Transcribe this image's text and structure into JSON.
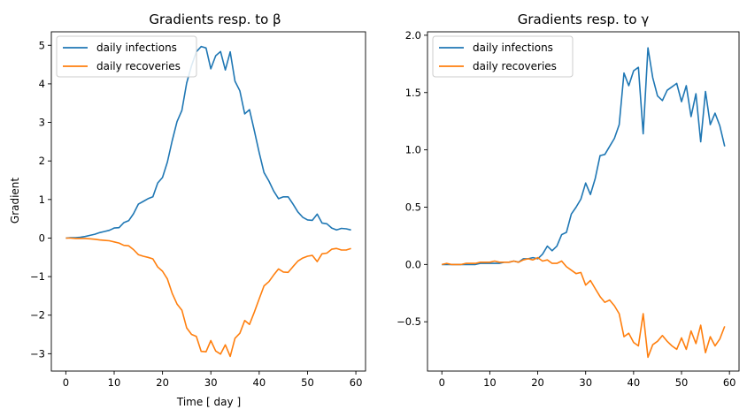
{
  "chart_data": [
    {
      "type": "line",
      "title": "Gradients resp. to β",
      "xlabel": "Time [ day ]",
      "ylabel": "Gradient",
      "xlim": [
        -3,
        62
      ],
      "ylim": [
        -3.45,
        5.35
      ],
      "xticks": [
        0,
        10,
        20,
        30,
        40,
        50,
        60
      ],
      "yticks": [
        -3,
        -2,
        -1,
        0,
        1,
        2,
        3,
        4,
        5
      ],
      "ytick_labels": [
        "−3",
        "−2",
        "−1",
        "0",
        "1",
        "2",
        "3",
        "4",
        "5"
      ],
      "grid": false,
      "legend": "upper left",
      "x": [
        0,
        1,
        2,
        3,
        4,
        5,
        6,
        7,
        8,
        9,
        10,
        11,
        12,
        13,
        14,
        15,
        16,
        17,
        18,
        19,
        20,
        21,
        22,
        23,
        24,
        25,
        26,
        27,
        28,
        29,
        30,
        31,
        32,
        33,
        34,
        35,
        36,
        37,
        38,
        39,
        40,
        41,
        42,
        43,
        44,
        45,
        46,
        47,
        48,
        49,
        50,
        51,
        52,
        53,
        54,
        55,
        56,
        57,
        58,
        59
      ],
      "series": [
        {
          "name": "daily infections",
          "color": "#1f77b4",
          "values": [
            0.0,
            0.01,
            0.01,
            0.02,
            0.04,
            0.07,
            0.1,
            0.14,
            0.17,
            0.2,
            0.26,
            0.27,
            0.4,
            0.45,
            0.63,
            0.88,
            0.95,
            1.02,
            1.07,
            1.43,
            1.57,
            1.97,
            2.52,
            3.02,
            3.31,
            4.02,
            4.47,
            4.83,
            4.97,
            4.93,
            4.39,
            4.73,
            4.84,
            4.36,
            4.83,
            4.07,
            3.82,
            3.22,
            3.33,
            2.78,
            2.22,
            1.7,
            1.48,
            1.22,
            1.02,
            1.07,
            1.07,
            0.88,
            0.68,
            0.54,
            0.47,
            0.46,
            0.62,
            0.39,
            0.37,
            0.26,
            0.21,
            0.25,
            0.24,
            0.21
          ]
        },
        {
          "name": "daily recoveries",
          "color": "#ff7f0e",
          "values": [
            0.0,
            0.0,
            -0.01,
            -0.01,
            -0.01,
            -0.02,
            -0.03,
            -0.05,
            -0.06,
            -0.07,
            -0.1,
            -0.13,
            -0.19,
            -0.2,
            -0.3,
            -0.43,
            -0.47,
            -0.5,
            -0.54,
            -0.75,
            -0.86,
            -1.06,
            -1.43,
            -1.71,
            -1.87,
            -2.33,
            -2.5,
            -2.55,
            -2.94,
            -2.95,
            -2.66,
            -2.93,
            -3.01,
            -2.77,
            -3.07,
            -2.6,
            -2.47,
            -2.14,
            -2.24,
            -1.92,
            -1.58,
            -1.24,
            -1.13,
            -0.96,
            -0.8,
            -0.88,
            -0.89,
            -0.74,
            -0.6,
            -0.52,
            -0.47,
            -0.45,
            -0.61,
            -0.41,
            -0.39,
            -0.29,
            -0.27,
            -0.31,
            -0.31,
            -0.27
          ]
        }
      ]
    },
    {
      "type": "line",
      "title": "Gradients resp. to γ",
      "xlabel": "",
      "ylabel": "",
      "xlim": [
        -3,
        62
      ],
      "ylim": [
        -0.93,
        2.03
      ],
      "xticks": [
        0,
        10,
        20,
        30,
        40,
        50,
        60
      ],
      "yticks": [
        -0.5,
        0.0,
        0.5,
        1.0,
        1.5,
        2.0
      ],
      "ytick_labels": [
        "−0.5",
        "0.0",
        "0.5",
        "1.0",
        "1.5",
        "2.0"
      ],
      "grid": false,
      "legend": "upper left",
      "x": [
        0,
        1,
        2,
        3,
        4,
        5,
        6,
        7,
        8,
        9,
        10,
        11,
        12,
        13,
        14,
        15,
        16,
        17,
        18,
        19,
        20,
        21,
        22,
        23,
        24,
        25,
        26,
        27,
        28,
        29,
        30,
        31,
        32,
        33,
        34,
        35,
        36,
        37,
        38,
        39,
        40,
        41,
        42,
        43,
        44,
        45,
        46,
        47,
        48,
        49,
        50,
        51,
        52,
        53,
        54,
        55,
        56,
        57,
        58,
        59
      ],
      "series": [
        {
          "name": "daily infections",
          "color": "#1f77b4",
          "values": [
            0.0,
            0.0,
            0.0,
            0.0,
            0.0,
            0.0,
            0.0,
            0.0,
            0.01,
            0.01,
            0.01,
            0.01,
            0.01,
            0.02,
            0.02,
            0.03,
            0.02,
            0.05,
            0.05,
            0.06,
            0.05,
            0.09,
            0.16,
            0.12,
            0.16,
            0.26,
            0.28,
            0.44,
            0.5,
            0.57,
            0.71,
            0.61,
            0.75,
            0.95,
            0.96,
            1.03,
            1.1,
            1.22,
            1.67,
            1.56,
            1.69,
            1.72,
            1.14,
            1.89,
            1.63,
            1.47,
            1.43,
            1.52,
            1.55,
            1.58,
            1.42,
            1.56,
            1.29,
            1.49,
            1.07,
            1.51,
            1.22,
            1.32,
            1.21,
            1.03
          ]
        },
        {
          "name": "daily recoveries",
          "color": "#ff7f0e",
          "values": [
            0.0,
            0.01,
            0.0,
            0.0,
            0.0,
            0.01,
            0.01,
            0.01,
            0.02,
            0.02,
            0.02,
            0.03,
            0.02,
            0.02,
            0.02,
            0.03,
            0.02,
            0.04,
            0.05,
            0.04,
            0.06,
            0.03,
            0.04,
            0.01,
            0.01,
            0.03,
            -0.02,
            -0.05,
            -0.08,
            -0.07,
            -0.18,
            -0.14,
            -0.21,
            -0.28,
            -0.33,
            -0.31,
            -0.36,
            -0.43,
            -0.63,
            -0.6,
            -0.68,
            -0.71,
            -0.43,
            -0.81,
            -0.7,
            -0.67,
            -0.62,
            -0.67,
            -0.71,
            -0.74,
            -0.64,
            -0.74,
            -0.58,
            -0.69,
            -0.53,
            -0.77,
            -0.63,
            -0.71,
            -0.65,
            -0.54
          ]
        }
      ]
    }
  ]
}
